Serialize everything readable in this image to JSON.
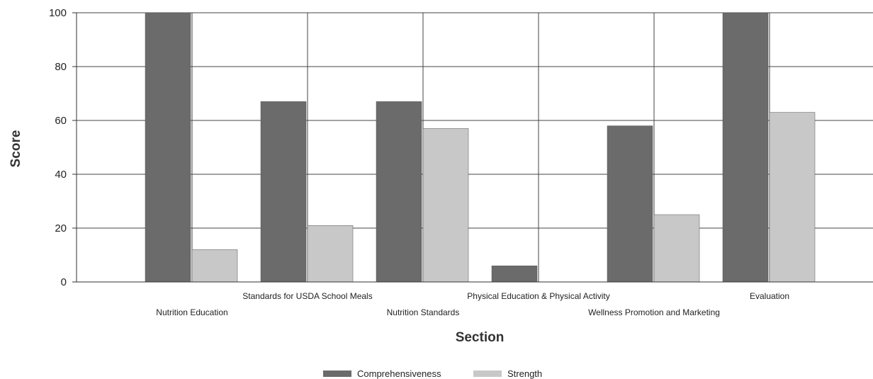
{
  "chart_data": {
    "type": "bar",
    "categories": [
      "Nutrition Education",
      "Standards for USDA School Meals",
      "Nutrition Standards",
      "Physical Education & Physical Activity",
      "Wellness Promotion and Marketing",
      "Evaluation"
    ],
    "series": [
      {
        "name": "Comprehensiveness",
        "values": [
          100,
          67,
          67,
          6,
          58,
          100
        ],
        "color": "#6b6b6b"
      },
      {
        "name": "Strength",
        "values": [
          12,
          21,
          57,
          0,
          25,
          63
        ],
        "color": "#c8c8c8"
      }
    ],
    "xlabel": "Section",
    "ylabel": "Score",
    "ylim": [
      0,
      100
    ],
    "yticks": [
      0,
      20,
      40,
      60,
      80,
      100
    ],
    "grid": true,
    "legend_position": "bottom-center"
  }
}
